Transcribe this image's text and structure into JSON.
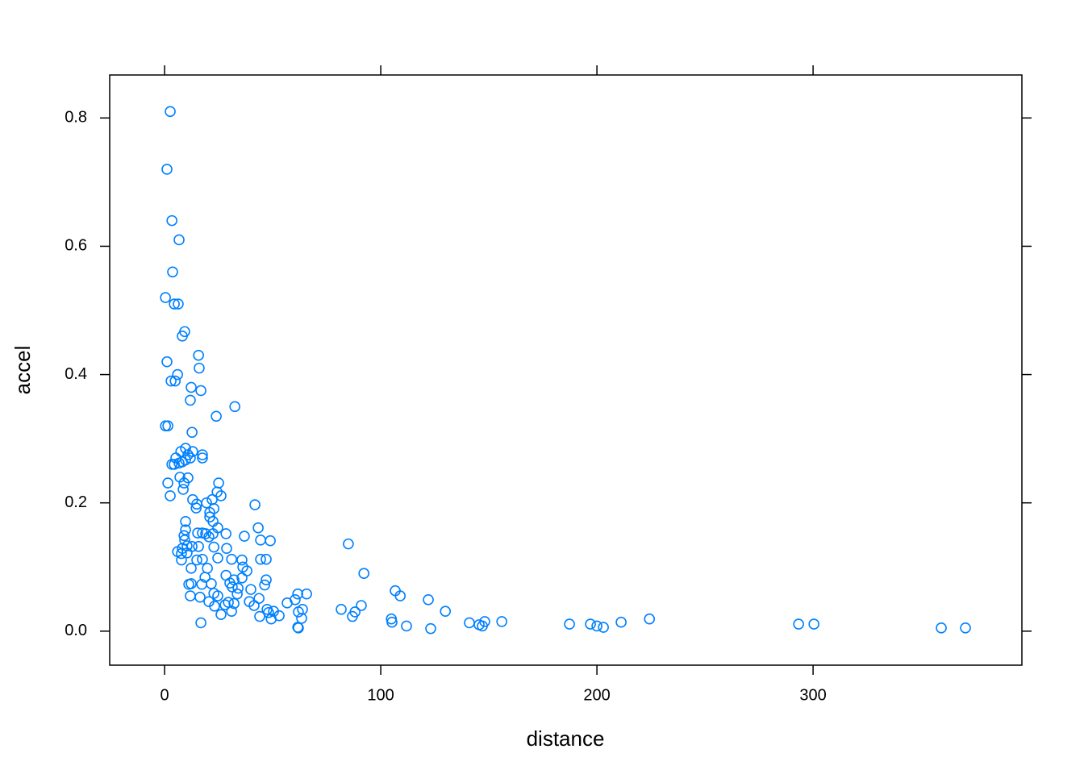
{
  "chart_data": {
    "type": "scatter",
    "xlabel": "distance",
    "ylabel": "accel",
    "color": "#0080ff",
    "xlim": [
      -25.4,
      396.6
    ],
    "ylim": [
      -0.053,
      0.867
    ],
    "xticks": [
      0,
      100,
      200,
      300
    ],
    "yticks": [
      {
        "value": 0,
        "label": "0.0"
      },
      0.2,
      0.4,
      0.6,
      0.8
    ],
    "x": [
      2.6,
      1.1,
      3.4,
      6.7,
      3.7,
      0.4,
      4.5,
      6.3,
      9.3,
      8.2,
      1.1,
      15.7,
      16,
      6,
      3,
      4.9,
      12.3,
      16.8,
      11.9,
      32.5,
      23.9,
      0.4,
      1.5,
      12.7,
      9.7,
      7.5,
      13,
      17.5,
      17.5,
      5.2,
      11.9,
      10.8,
      9.7,
      6.7,
      3.4,
      8.2,
      4.5,
      7.1,
      10.8,
      1.5,
      25,
      9,
      8.6,
      24.3,
      26.1,
      2.6,
      13,
      22,
      14.9,
      19.4,
      41.8,
      14.6,
      22.8,
      20.9,
      20.9,
      9.7,
      22.4,
      43.3,
      24.6,
      9.7,
      15.3,
      17.5,
      19,
      28.4,
      22.4,
      36.9,
      9,
      20.5,
      9.3,
      44.4,
      48.9,
      10.4,
      12.7,
      15.7,
      22.8,
      28.7,
      85,
      8.2,
      6,
      10.4,
      7.8,
      44.4,
      47,
      31,
      24.6,
      14.9,
      7.8,
      17.5,
      35.8,
      36.2,
      19.8,
      12.3,
      38.1,
      92.2,
      28.4,
      18.7,
      32.1,
      35.8,
      47,
      30.2,
      11.2,
      12.3,
      21.6,
      17.2,
      46.3,
      31.3,
      34,
      39.9,
      106.7,
      22.8,
      33.6,
      61.6,
      65.7,
      109,
      11.9,
      24.6,
      16.4,
      43.7,
      60.4,
      122,
      39.2,
      20.5,
      29.5,
      56.7,
      32.1,
      28,
      41.4,
      91,
      23.1,
      81.7,
      47.4,
      63.8,
      129.9,
      50.4,
      88.1,
      61.9,
      48.1,
      26.1,
      31,
      53,
      44,
      86.9,
      63.4,
      104.9,
      224.3,
      49.3,
      16.8,
      105.2,
      141,
      148.1,
      156,
      211.2,
      187.3,
      197,
      145.5,
      293.3,
      300.4,
      111.9,
      147,
      200,
      203,
      359.3,
      370.5,
      61.9,
      123.1,
      61.6
    ],
    "values": [
      0.81,
      0.72,
      0.64,
      0.61,
      0.56,
      0.52,
      0.51,
      0.51,
      0.467,
      0.46,
      0.42,
      0.43,
      0.41,
      0.4,
      0.39,
      0.39,
      0.38,
      0.375,
      0.36,
      0.35,
      0.335,
      0.32,
      0.32,
      0.31,
      0.285,
      0.28,
      0.28,
      0.275,
      0.27,
      0.27,
      0.27,
      0.275,
      0.267,
      0.262,
      0.26,
      0.264,
      0.26,
      0.24,
      0.239,
      0.231,
      0.231,
      0.231,
      0.221,
      0.217,
      0.211,
      0.211,
      0.205,
      0.205,
      0.198,
      0.2,
      0.197,
      0.192,
      0.191,
      0.185,
      0.178,
      0.171,
      0.171,
      0.161,
      0.161,
      0.158,
      0.153,
      0.153,
      0.152,
      0.152,
      0.152,
      0.148,
      0.149,
      0.147,
      0.142,
      0.142,
      0.141,
      0.133,
      0.132,
      0.132,
      0.131,
      0.129,
      0.136,
      0.129,
      0.124,
      0.122,
      0.121,
      0.112,
      0.112,
      0.112,
      0.114,
      0.111,
      0.111,
      0.112,
      0.111,
      0.1,
      0.098,
      0.098,
      0.094,
      0.09,
      0.087,
      0.084,
      0.08,
      0.083,
      0.08,
      0.075,
      0.073,
      0.074,
      0.074,
      0.073,
      0.072,
      0.069,
      0.067,
      0.065,
      0.063,
      0.059,
      0.058,
      0.058,
      0.058,
      0.055,
      0.055,
      0.055,
      0.053,
      0.051,
      0.049,
      0.049,
      0.046,
      0.046,
      0.045,
      0.044,
      0.043,
      0.041,
      0.04,
      0.04,
      0.039,
      0.034,
      0.034,
      0.034,
      0.031,
      0.031,
      0.03,
      0.03,
      0.029,
      0.026,
      0.031,
      0.024,
      0.023,
      0.023,
      0.02,
      0.019,
      0.019,
      0.019,
      0.013,
      0.014,
      0.013,
      0.015,
      0.015,
      0.014,
      0.011,
      0.011,
      0.01,
      0.011,
      0.011,
      0.008,
      0.008,
      0.008,
      0.006,
      0.005,
      0.005,
      0.005,
      0.004,
      0.006
    ]
  }
}
